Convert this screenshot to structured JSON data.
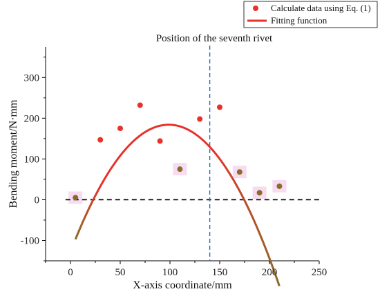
{
  "chart_data": {
    "type": "scatter",
    "xlabel": "X-axis coordinate/mm",
    "ylabel": "Bending moment/N·mm",
    "xlim": [
      -25,
      250
    ],
    "ylim": [
      -150,
      375
    ],
    "xticks": [
      0,
      50,
      100,
      150,
      200,
      250
    ],
    "yticks": [
      -100,
      0,
      100,
      200,
      300
    ],
    "x_tick_labels": [
      "0",
      "50",
      "100",
      "150",
      "200",
      "250"
    ],
    "y_tick_labels": [
      "-100",
      "0",
      "100",
      "200",
      "300"
    ],
    "legend_position": "top-right",
    "series": [
      {
        "name": "Calculate data using Eq. (1)",
        "kind": "scatter",
        "color": "#e8312a",
        "points": [
          {
            "x": 5,
            "y": 5,
            "highlight": true
          },
          {
            "x": 30,
            "y": 147
          },
          {
            "x": 50,
            "y": 175
          },
          {
            "x": 70,
            "y": 232
          },
          {
            "x": 90,
            "y": 144
          },
          {
            "x": 110,
            "y": 75,
            "highlight": true
          },
          {
            "x": 130,
            "y": 198
          },
          {
            "x": 150,
            "y": 227
          },
          {
            "x": 170,
            "y": 68,
            "highlight": true
          },
          {
            "x": 190,
            "y": 17,
            "highlight": true
          },
          {
            "x": 210,
            "y": 33,
            "highlight": true
          }
        ]
      },
      {
        "name": "Fitting function",
        "kind": "line",
        "color": "#e8312a",
        "quadratic": {
          "a": -0.032,
          "b": 6.32,
          "c": -128.0
        },
        "x_range": [
          5,
          210
        ]
      }
    ],
    "reference_lines": [
      {
        "orientation": "horizontal",
        "value": 0,
        "color": "#000000",
        "style": "dashed"
      },
      {
        "orientation": "vertical",
        "value": 140,
        "color": "#1f6fc4",
        "style": "dashed"
      }
    ],
    "annotations": [
      {
        "text": "Position of the seventh rivet"
      }
    ],
    "highlight_color": "#8a6b2a",
    "highlight_tint": "#f6dcf0",
    "curve_end_color": "#8a6b2a"
  }
}
